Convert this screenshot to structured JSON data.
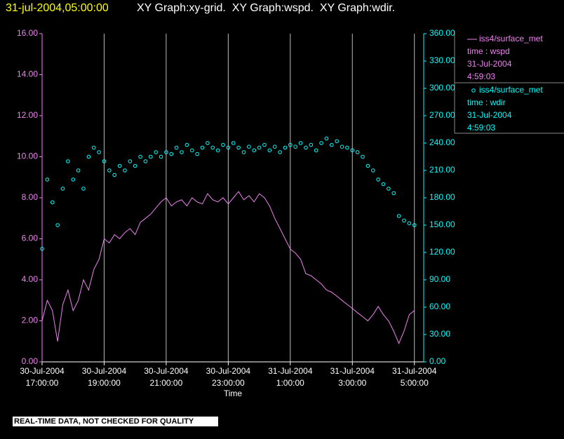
{
  "chart_data": {
    "type": "line",
    "header_time": "31-jul-2004,05:00:00",
    "title": "XY Graph:xy-grid.  XY Graph:wspd.  XY Graph:wdir.",
    "xlabel": "Time",
    "footer": "REAL-TIME DATA, NOT CHECKED FOR QUALITY",
    "x": [
      "2004-07-30T17:00",
      "2004-07-30T17:10",
      "2004-07-30T17:20",
      "2004-07-30T17:30",
      "2004-07-30T17:40",
      "2004-07-30T17:50",
      "2004-07-30T18:00",
      "2004-07-30T18:10",
      "2004-07-30T18:20",
      "2004-07-30T18:30",
      "2004-07-30T18:40",
      "2004-07-30T18:50",
      "2004-07-30T19:00",
      "2004-07-30T19:10",
      "2004-07-30T19:20",
      "2004-07-30T19:30",
      "2004-07-30T19:40",
      "2004-07-30T19:50",
      "2004-07-30T20:00",
      "2004-07-30T20:10",
      "2004-07-30T20:20",
      "2004-07-30T20:30",
      "2004-07-30T20:40",
      "2004-07-30T20:50",
      "2004-07-30T21:00",
      "2004-07-30T21:10",
      "2004-07-30T21:20",
      "2004-07-30T21:30",
      "2004-07-30T21:40",
      "2004-07-30T21:50",
      "2004-07-30T22:00",
      "2004-07-30T22:10",
      "2004-07-30T22:20",
      "2004-07-30T22:30",
      "2004-07-30T22:40",
      "2004-07-30T22:50",
      "2004-07-30T23:00",
      "2004-07-30T23:10",
      "2004-07-30T23:20",
      "2004-07-30T23:30",
      "2004-07-30T23:40",
      "2004-07-30T23:50",
      "2004-07-31T00:00",
      "2004-07-31T00:10",
      "2004-07-31T00:20",
      "2004-07-31T00:30",
      "2004-07-31T00:40",
      "2004-07-31T00:50",
      "2004-07-31T01:00",
      "2004-07-31T01:10",
      "2004-07-31T01:20",
      "2004-07-31T01:30",
      "2004-07-31T01:40",
      "2004-07-31T01:50",
      "2004-07-31T02:00",
      "2004-07-31T02:10",
      "2004-07-31T02:20",
      "2004-07-31T02:30",
      "2004-07-31T02:40",
      "2004-07-31T02:50",
      "2004-07-31T03:00",
      "2004-07-31T03:10",
      "2004-07-31T03:20",
      "2004-07-31T03:30",
      "2004-07-31T03:40",
      "2004-07-31T03:50",
      "2004-07-31T04:00",
      "2004-07-31T04:10",
      "2004-07-31T04:20",
      "2004-07-31T04:30",
      "2004-07-31T04:40",
      "2004-07-31T04:50",
      "2004-07-31T05:00"
    ],
    "series": [
      {
        "name": "iss4/surface_met",
        "legend_info": [
          "time : wspd",
          "31-Jul-2004",
          "4:59:03"
        ],
        "color": "#ee82ee",
        "axis": "y",
        "values": [
          2.0,
          3.0,
          2.5,
          1.0,
          2.8,
          3.5,
          2.5,
          3.0,
          4.0,
          3.5,
          4.5,
          5.0,
          6.0,
          5.8,
          6.2,
          6.0,
          6.3,
          6.5,
          6.2,
          6.8,
          7.0,
          7.2,
          7.5,
          7.8,
          8.0,
          7.6,
          7.8,
          7.9,
          7.6,
          8.0,
          7.8,
          7.7,
          8.2,
          7.9,
          7.8,
          8.0,
          7.7,
          8.0,
          8.3,
          7.9,
          8.1,
          7.8,
          8.2,
          8.0,
          7.6,
          7.0,
          6.5,
          6.0,
          5.5,
          5.3,
          5.0,
          4.3,
          4.2,
          4.0,
          3.8,
          3.5,
          3.4,
          3.2,
          3.0,
          2.8,
          2.6,
          2.4,
          2.2,
          2.0,
          2.3,
          2.7,
          2.3,
          2.0,
          1.5,
          0.9,
          1.5,
          2.3,
          2.5
        ]
      },
      {
        "name": "iss4/surface_met",
        "legend_info": [
          "time : wdir",
          "31-Jul-2004",
          "4:59:03"
        ],
        "color": "#00ffff",
        "axis": "y2",
        "values": [
          124,
          200,
          175,
          150,
          190,
          220,
          200,
          210,
          190,
          225,
          235,
          230,
          220,
          210,
          205,
          215,
          210,
          220,
          215,
          225,
          220,
          225,
          230,
          225,
          230,
          228,
          235,
          230,
          238,
          232,
          228,
          235,
          240,
          235,
          232,
          238,
          235,
          240,
          235,
          230,
          236,
          232,
          235,
          238,
          232,
          236,
          230,
          235,
          238,
          236,
          240,
          235,
          238,
          232,
          240,
          245,
          238,
          242,
          236,
          235,
          232,
          230,
          225,
          215,
          210,
          200,
          195,
          190,
          185,
          160,
          155,
          152,
          150
        ]
      }
    ],
    "xlim": [
      "2004-07-30T17:00",
      "2004-07-31T05:18"
    ],
    "xticks": [
      {
        "value": "2004-07-30T17:00",
        "label": "30-Jul-2004 17:00:00"
      },
      {
        "value": "2004-07-30T19:00",
        "label": "30-Jul-2004 19:00:00"
      },
      {
        "value": "2004-07-30T21:00",
        "label": "30-Jul-2004 21:00:00"
      },
      {
        "value": "2004-07-30T23:00",
        "label": "30-Jul-2004 23:00:00"
      },
      {
        "value": "2004-07-31T01:00",
        "label": "31-Jul-2004 1:00:00"
      },
      {
        "value": "2004-07-31T03:00",
        "label": "31-Jul-2004 3:00:00"
      },
      {
        "value": "2004-07-31T05:00",
        "label": "31-Jul-2004 5:00:00"
      }
    ],
    "ylim": [
      0,
      16
    ],
    "yticks": [
      {
        "value": 0,
        "label": "0.00"
      },
      {
        "value": 2,
        "label": "2.00"
      },
      {
        "value": 4,
        "label": "4.00"
      },
      {
        "value": 6,
        "label": "6.00"
      },
      {
        "value": 8,
        "label": "8.00"
      },
      {
        "value": 10,
        "label": "10.00"
      },
      {
        "value": 12,
        "label": "12.00"
      },
      {
        "value": 14,
        "label": "14.00"
      },
      {
        "value": 16,
        "label": "16.00"
      }
    ],
    "y2lim": [
      0,
      360
    ],
    "y2ticks": [
      {
        "value": 0,
        "label": "0.00"
      },
      {
        "value": 30,
        "label": "30.00"
      },
      {
        "value": 60,
        "label": "60.00"
      },
      {
        "value": 90,
        "label": "90.00"
      },
      {
        "value": 120,
        "label": "120.00"
      },
      {
        "value": 150,
        "label": "150.00"
      },
      {
        "value": 180,
        "label": "180.00"
      },
      {
        "value": 210,
        "label": "210.00"
      },
      {
        "value": 240,
        "label": "240.00"
      },
      {
        "value": 270,
        "label": "270.00"
      },
      {
        "value": 300,
        "label": "300.00"
      },
      {
        "value": 330,
        "label": "330.00"
      },
      {
        "value": 360,
        "label": "360.00"
      }
    ],
    "grid": true
  }
}
